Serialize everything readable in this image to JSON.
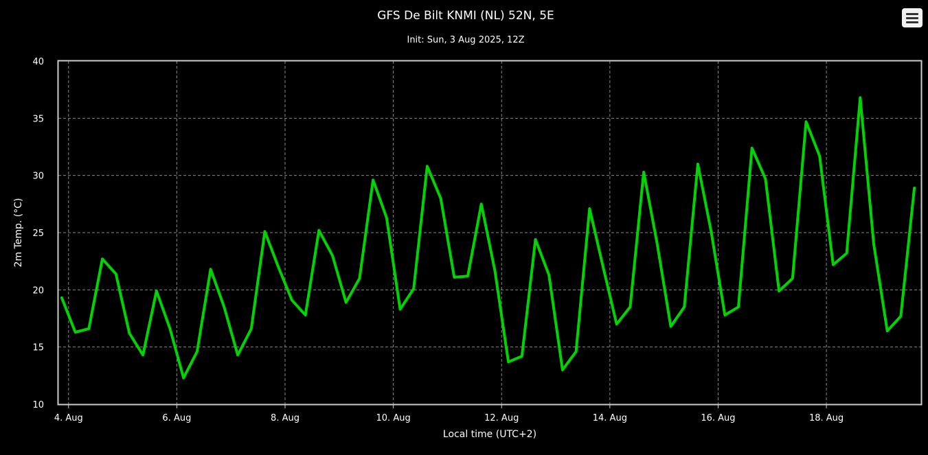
{
  "chart_data": {
    "type": "line",
    "title": "GFS De Bilt KNMI (NL) 52N, 5E",
    "subtitle": "Init: Sun, 3 Aug 2025, 12Z",
    "xlabel": "Local time (UTC+2)",
    "ylabel": "2m Temp. (°C)",
    "ylim": [
      10,
      40
    ],
    "yticks": [
      "10",
      "15",
      "20",
      "25",
      "30",
      "35",
      "40"
    ],
    "xlim": [
      "2025-08-03T19:30",
      "2025-08-19T18:00"
    ],
    "xticks": [
      {
        "date": "2025-08-04T00:00",
        "label": "4. Aug"
      },
      {
        "date": "2025-08-06T00:00",
        "label": "6. Aug"
      },
      {
        "date": "2025-08-08T00:00",
        "label": "8. Aug"
      },
      {
        "date": "2025-08-10T00:00",
        "label": "10. Aug"
      },
      {
        "date": "2025-08-12T00:00",
        "label": "12. Aug"
      },
      {
        "date": "2025-08-14T00:00",
        "label": "14. Aug"
      },
      {
        "date": "2025-08-16T00:00",
        "label": "16. Aug"
      },
      {
        "date": "2025-08-18T00:00",
        "label": "18. Aug"
      }
    ],
    "grid": true,
    "color": "#00d400",
    "series": [
      {
        "x": [
          "2025-08-03T21:00",
          "2025-08-04T03:00",
          "2025-08-04T09:00",
          "2025-08-04T15:00",
          "2025-08-04T21:00",
          "2025-08-05T03:00",
          "2025-08-05T09:00",
          "2025-08-05T15:00",
          "2025-08-05T21:00",
          "2025-08-06T03:00",
          "2025-08-06T09:00",
          "2025-08-06T15:00",
          "2025-08-06T21:00",
          "2025-08-07T03:00",
          "2025-08-07T09:00",
          "2025-08-07T15:00",
          "2025-08-07T21:00",
          "2025-08-08T03:00",
          "2025-08-08T09:00",
          "2025-08-08T15:00",
          "2025-08-08T21:00",
          "2025-08-09T03:00",
          "2025-08-09T09:00",
          "2025-08-09T15:00",
          "2025-08-09T21:00",
          "2025-08-10T03:00",
          "2025-08-10T09:00",
          "2025-08-10T15:00",
          "2025-08-10T21:00",
          "2025-08-11T03:00",
          "2025-08-11T09:00",
          "2025-08-11T15:00",
          "2025-08-11T21:00",
          "2025-08-12T03:00",
          "2025-08-12T09:00",
          "2025-08-12T15:00",
          "2025-08-12T21:00",
          "2025-08-13T03:00",
          "2025-08-13T09:00",
          "2025-08-13T15:00",
          "2025-08-13T21:00",
          "2025-08-14T03:00",
          "2025-08-14T09:00",
          "2025-08-14T15:00",
          "2025-08-14T21:00",
          "2025-08-15T03:00",
          "2025-08-15T09:00",
          "2025-08-15T15:00",
          "2025-08-15T21:00",
          "2025-08-16T03:00",
          "2025-08-16T09:00",
          "2025-08-16T15:00",
          "2025-08-16T21:00",
          "2025-08-17T03:00",
          "2025-08-17T09:00",
          "2025-08-17T15:00",
          "2025-08-17T21:00",
          "2025-08-18T03:00",
          "2025-08-18T09:00",
          "2025-08-18T15:00",
          "2025-08-18T21:00",
          "2025-08-19T03:00",
          "2025-08-19T09:00",
          "2025-08-19T15:00"
        ],
        "y": [
          19.3,
          16.3,
          16.6,
          22.7,
          21.4,
          16.2,
          14.3,
          19.9,
          16.6,
          12.3,
          14.6,
          21.8,
          18.5,
          14.3,
          16.6,
          25.1,
          22.0,
          19.1,
          17.8,
          25.2,
          23.0,
          18.9,
          21.0,
          29.6,
          26.3,
          18.3,
          20.1,
          30.8,
          28.0,
          21.1,
          21.2,
          27.5,
          21.7,
          13.7,
          14.2,
          24.4,
          21.3,
          13.0,
          14.6,
          27.1,
          22.0,
          17.0,
          18.5,
          30.3,
          24.0,
          16.8,
          18.5,
          31.0,
          25.0,
          17.8,
          18.5,
          32.4,
          29.7,
          19.9,
          21.0,
          34.7,
          31.7,
          22.2,
          23.2,
          36.8,
          24.0,
          16.4,
          17.7,
          28.9
        ]
      }
    ]
  }
}
